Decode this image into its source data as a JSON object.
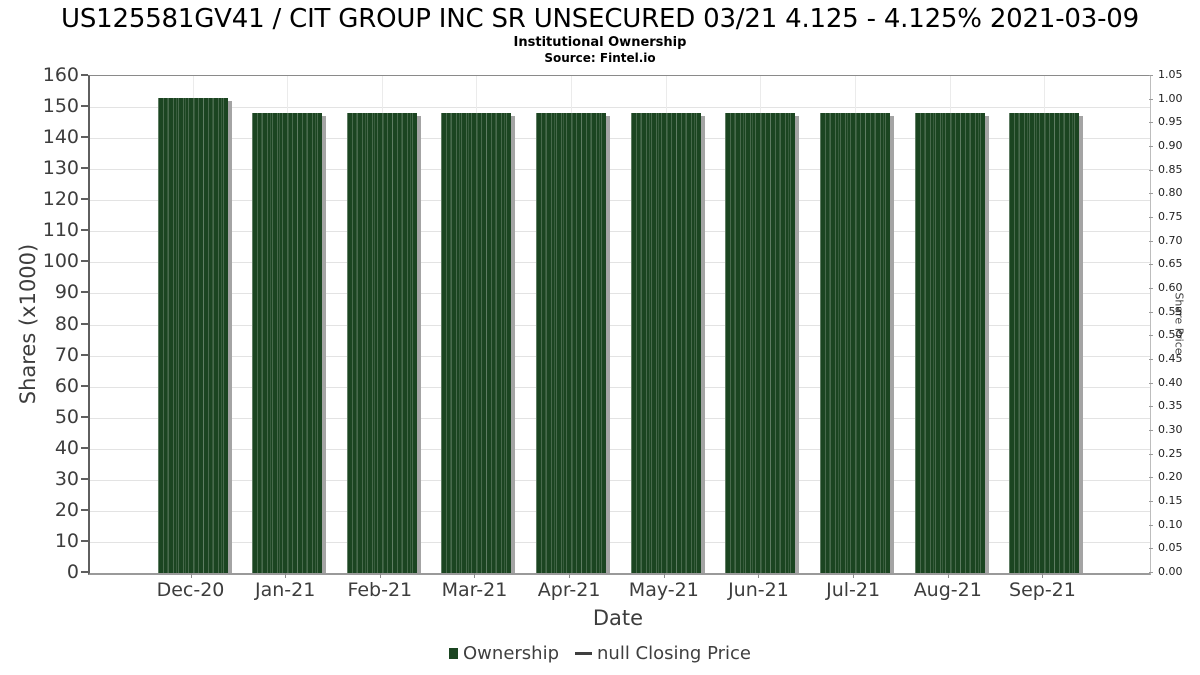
{
  "page": {
    "title": "US125581GV41 / CIT GROUP INC SR UNSECURED 03/21 4.125 - 4.125% 2021-03-09",
    "subtitle": "Institutional Ownership",
    "source": "Source: Fintel.io"
  },
  "chart_data": {
    "type": "bar",
    "title": "US125581GV41 / CIT GROUP INC SR UNSECURED 03/21 4.125 - 4.125% 2021-03-09",
    "subtitle": "Institutional Ownership",
    "source": "Source: Fintel.io",
    "xlabel": "Date",
    "ylabel_left": "Shares (x1000)",
    "ylabel_right": "Share Price",
    "categories": [
      "Dec-20",
      "Jan-21",
      "Feb-21",
      "Mar-21",
      "Apr-21",
      "May-21",
      "Jun-21",
      "Jul-21",
      "Aug-21",
      "Sep-21"
    ],
    "series": [
      {
        "name": "Ownership",
        "type": "bar",
        "color": "#1b4521",
        "values": [
          153,
          148,
          148,
          148,
          148,
          148,
          148,
          148,
          148,
          148
        ]
      },
      {
        "name": "null Closing Price",
        "type": "line",
        "color": "#3f3f3f",
        "values": [
          null,
          null,
          null,
          null,
          null,
          null,
          null,
          null,
          null,
          null
        ]
      }
    ],
    "y_left": {
      "min": 0,
      "max": 160,
      "step": 10,
      "tick_labels": [
        "160",
        "150",
        "140",
        "130",
        "120",
        "110",
        "100",
        "90",
        "80",
        "70",
        "60",
        "50",
        "40",
        "30",
        "20",
        "10",
        "0"
      ]
    },
    "y_right": {
      "min": 0,
      "max": 1.05,
      "step": 0.05,
      "tick_labels": [
        "1.05",
        "1.00",
        "0.95",
        "0.90",
        "0.85",
        "0.80",
        "0.75",
        "0.70",
        "0.65",
        "0.60",
        "0.55",
        "0.50",
        "0.45",
        "0.40",
        "0.35",
        "0.30",
        "0.25",
        "0.20",
        "0.15",
        "0.10",
        "0.05",
        "0.00"
      ]
    },
    "grid": true,
    "legend_position": "bottom",
    "legend": [
      {
        "label": "Ownership",
        "marker": "square",
        "color": "#1b4521"
      },
      {
        "label": "null Closing Price",
        "marker": "line",
        "color": "#3f3f3f"
      }
    ],
    "bar_shadow_color": "#a4a4a4"
  }
}
